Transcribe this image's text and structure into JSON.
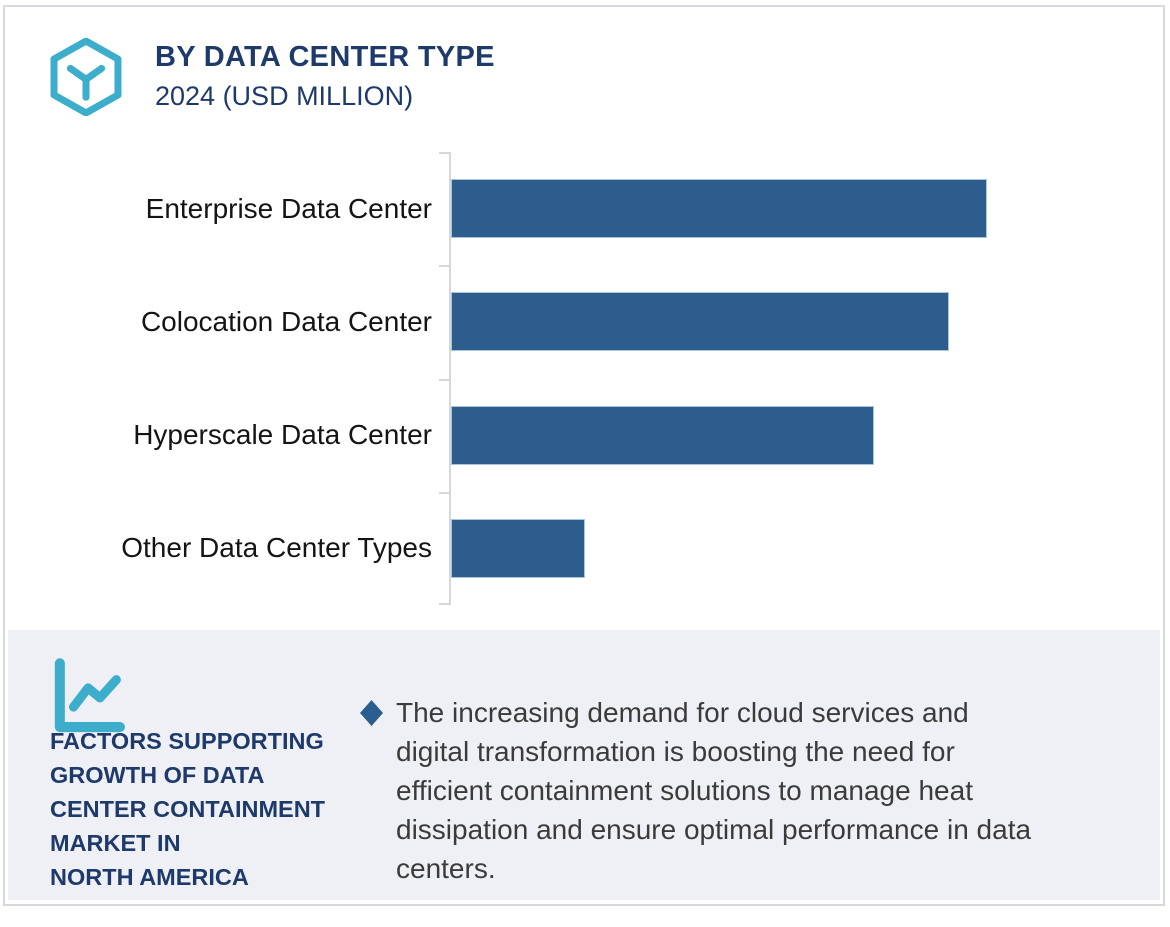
{
  "header": {
    "title": "BY DATA CENTER TYPE",
    "subtitle": "2024 (USD MILLION)"
  },
  "chart_data": {
    "type": "bar",
    "orientation": "horizontal",
    "title": "BY DATA CENTER TYPE",
    "subtitle": "2024 (USD MILLION)",
    "categories": [
      "Enterprise Data Center",
      "Colocation Data Center",
      "Hyperscale Data Center",
      "Other Data Center Types"
    ],
    "values": [
      100,
      93,
      79,
      25
    ],
    "value_note": "No numeric axis or data labels shown; values are relative bar lengths as % of longest bar",
    "xlabel": "",
    "ylabel": "",
    "xlim": [
      0,
      100
    ],
    "grid": false,
    "legend": false,
    "bar_color": "#2c5d8d"
  },
  "panel": {
    "heading": "FACTORS SUPPORTING\nGROWTH OF DATA\nCENTER CONTAINMENT\nMARKET IN\nNORTH AMERICA",
    "bullet_text": "The increasing demand for cloud services and\ndigital transformation is boosting the need for\nefficient containment solutions to manage heat\ndissipation and ensure optimal performance in data\ncenters."
  },
  "icons": {
    "logo": "cube-hexagon-icon",
    "panel": "line-chart-icon",
    "bullet": "diamond-bullet-icon"
  },
  "colors": {
    "accent_teal": "#3caecb",
    "navy": "#1e3a6b",
    "bar_blue": "#2c5d8d",
    "panel_background": "#eff0f5",
    "axis_gray": "#d6d7db",
    "body_text": "#3b3b3b"
  }
}
